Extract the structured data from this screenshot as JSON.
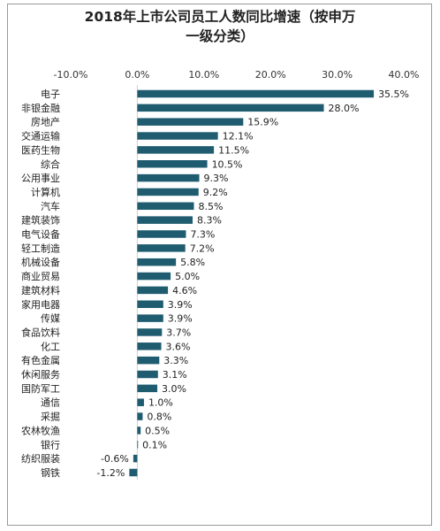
{
  "chart_data": {
    "type": "bar",
    "orientation": "horizontal",
    "title_line1": "2018年上市公司员工人数同比增速（按申万",
    "title_line2": "一级分类）",
    "categories": [
      "电子",
      "非银金融",
      "房地产",
      "交通运输",
      "医药生物",
      "综合",
      "公用事业",
      "计算机",
      "汽车",
      "建筑装饰",
      "电气设备",
      "轻工制造",
      "机械设备",
      "商业贸易",
      "建筑材料",
      "家用电器",
      "传媒",
      "食品饮料",
      "化工",
      "有色金属",
      "休闲服务",
      "国防军工",
      "通信",
      "采掘",
      "农林牧渔",
      "银行",
      "纺织服装",
      "钢铁"
    ],
    "values": [
      35.5,
      28.0,
      15.9,
      12.1,
      11.5,
      10.5,
      9.3,
      9.2,
      8.5,
      8.3,
      7.3,
      7.2,
      5.8,
      5.0,
      4.6,
      3.9,
      3.9,
      3.7,
      3.6,
      3.3,
      3.1,
      3.0,
      1.0,
      0.8,
      0.5,
      0.1,
      -0.6,
      -1.2
    ],
    "value_labels": [
      "35.5%",
      "28.0%",
      "15.9%",
      "12.1%",
      "11.5%",
      "10.5%",
      "9.3%",
      "9.2%",
      "8.5%",
      "8.3%",
      "7.3%",
      "7.2%",
      "5.8%",
      "5.0%",
      "4.6%",
      "3.9%",
      "3.9%",
      "3.7%",
      "3.6%",
      "3.3%",
      "3.1%",
      "3.0%",
      "1.0%",
      "0.8%",
      "0.5%",
      "0.1%",
      "-0.6%",
      "-1.2%"
    ],
    "x_ticks": [
      -10,
      0,
      10,
      20,
      30,
      40
    ],
    "x_tick_labels": [
      "-10.0%",
      "0.0%",
      "10.0%",
      "20.0%",
      "30.0%",
      "40.0%"
    ],
    "xlim": [
      -10,
      40
    ],
    "axis_position": "top",
    "grid": false,
    "bar_color": "#1f5c70"
  }
}
